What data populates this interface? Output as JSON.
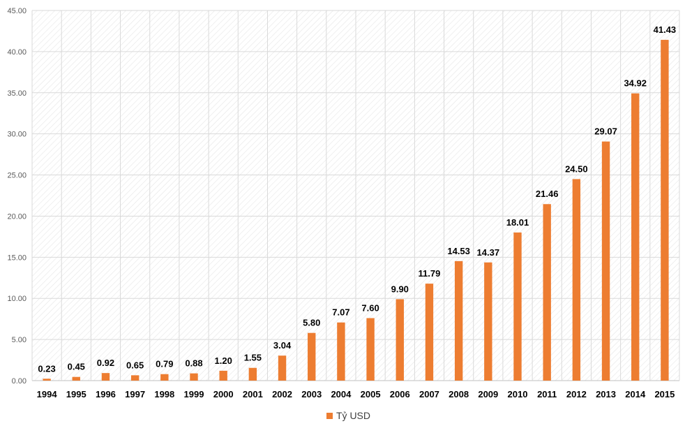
{
  "chart_data": {
    "type": "bar",
    "title": "",
    "xlabel": "",
    "ylabel": "",
    "ylim": [
      0,
      45
    ],
    "ytick_step": 5,
    "ytick_labels": [
      "0.00",
      "5.00",
      "10.00",
      "15.00",
      "20.00",
      "25.00",
      "30.00",
      "35.00",
      "40.00",
      "45.00"
    ],
    "grid": true,
    "legend_position": "bottom",
    "categories": [
      "1994",
      "1995",
      "1996",
      "1997",
      "1998",
      "1999",
      "2000",
      "2001",
      "2002",
      "2003",
      "2004",
      "2005",
      "2006",
      "2007",
      "2008",
      "2009",
      "2010",
      "2011",
      "2012",
      "2013",
      "2014",
      "2015"
    ],
    "series": [
      {
        "name": "Tỷ USD",
        "color": "#ED7D31",
        "values": [
          0.23,
          0.45,
          0.92,
          0.65,
          0.79,
          0.88,
          1.2,
          1.55,
          3.04,
          5.8,
          7.07,
          7.6,
          9.9,
          11.79,
          14.53,
          14.37,
          18.01,
          21.46,
          24.5,
          29.07,
          34.92,
          41.43
        ],
        "data_labels": [
          "0.23",
          "0.45",
          "0.92",
          "0.65",
          "0.79",
          "0.88",
          "1.20",
          "1.55",
          "3.04",
          "5.80",
          "7.07",
          "7.60",
          "9.90",
          "11.79",
          "14.53",
          "14.37",
          "18.01",
          "21.46",
          "24.50",
          "29.07",
          "34.92",
          "41.43"
        ]
      }
    ]
  }
}
